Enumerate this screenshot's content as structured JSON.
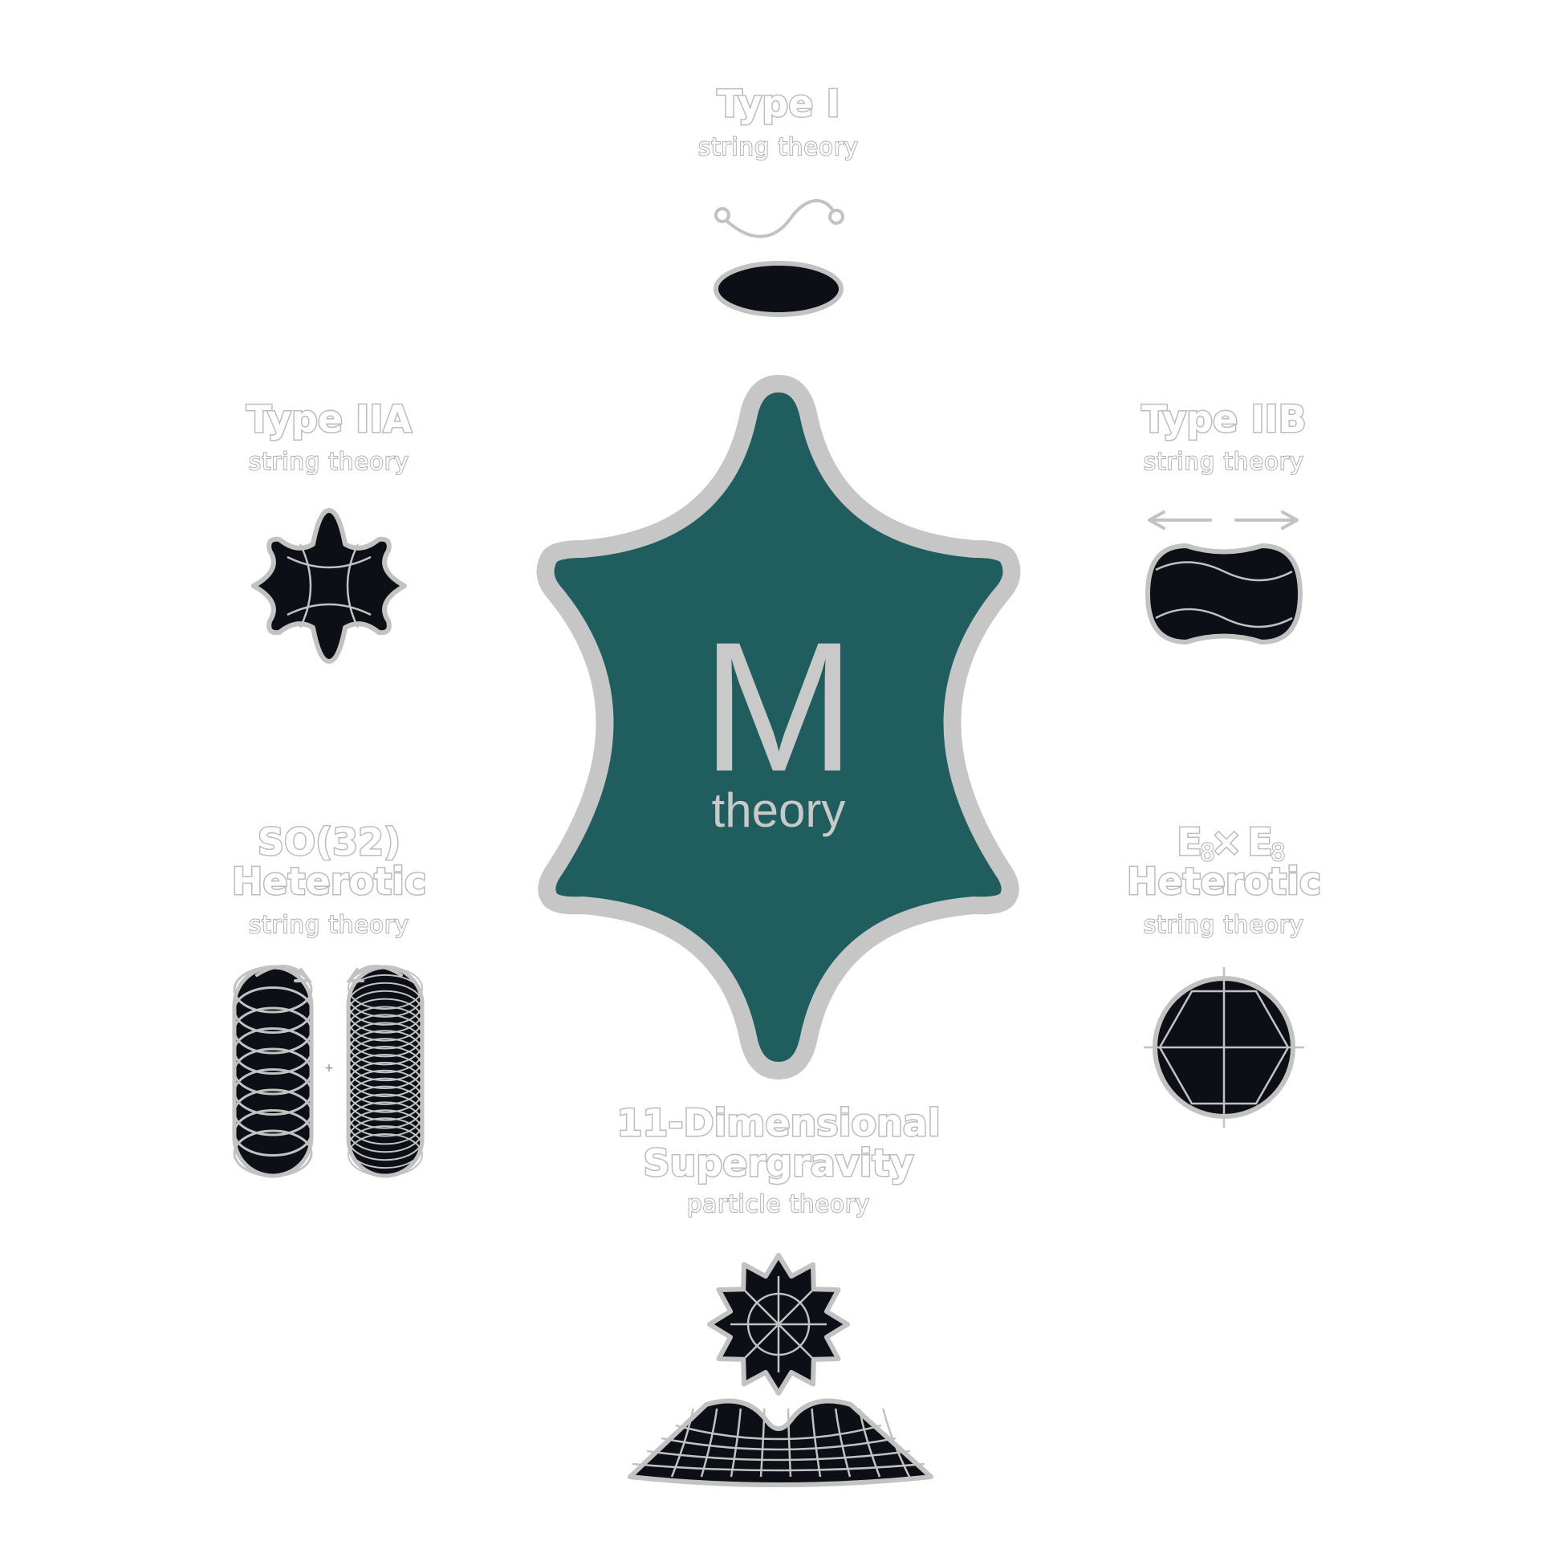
{
  "center": {
    "letter": "M",
    "subtitle": "theory",
    "fill_color": "#1f5d5e",
    "border_color": "#c6c6c6"
  },
  "theories": {
    "type_i": {
      "title": "Type I",
      "subtitle": "string theory",
      "icon": "open-string-icon"
    },
    "type_iia": {
      "title": "Type IIA",
      "subtitle": "string theory",
      "icon": "star-membrane-icon"
    },
    "type_iib": {
      "title": "Type IIB",
      "subtitle": "string theory",
      "icon": "dividing-blob-icon"
    },
    "so32": {
      "title_line1": "SO(32)",
      "title_line2": "Heterotic",
      "subtitle": "string theory",
      "icon": "coiled-strings-icon"
    },
    "e8": {
      "title_line1": "E",
      "title_subscript": "8",
      "title_times": "×",
      "title_line2": "Heterotic",
      "subtitle": "string theory",
      "icon": "hexagon-sphere-icon"
    },
    "sugra": {
      "title_line1": "11-Dimensional",
      "title_line2": "Supergravity",
      "subtitle": "particle theory",
      "icon": "curved-spacetime-icon"
    }
  },
  "colors": {
    "icon_fill": "#0c0f16",
    "outline": "#c2c2c2",
    "background": "#ffffff"
  }
}
